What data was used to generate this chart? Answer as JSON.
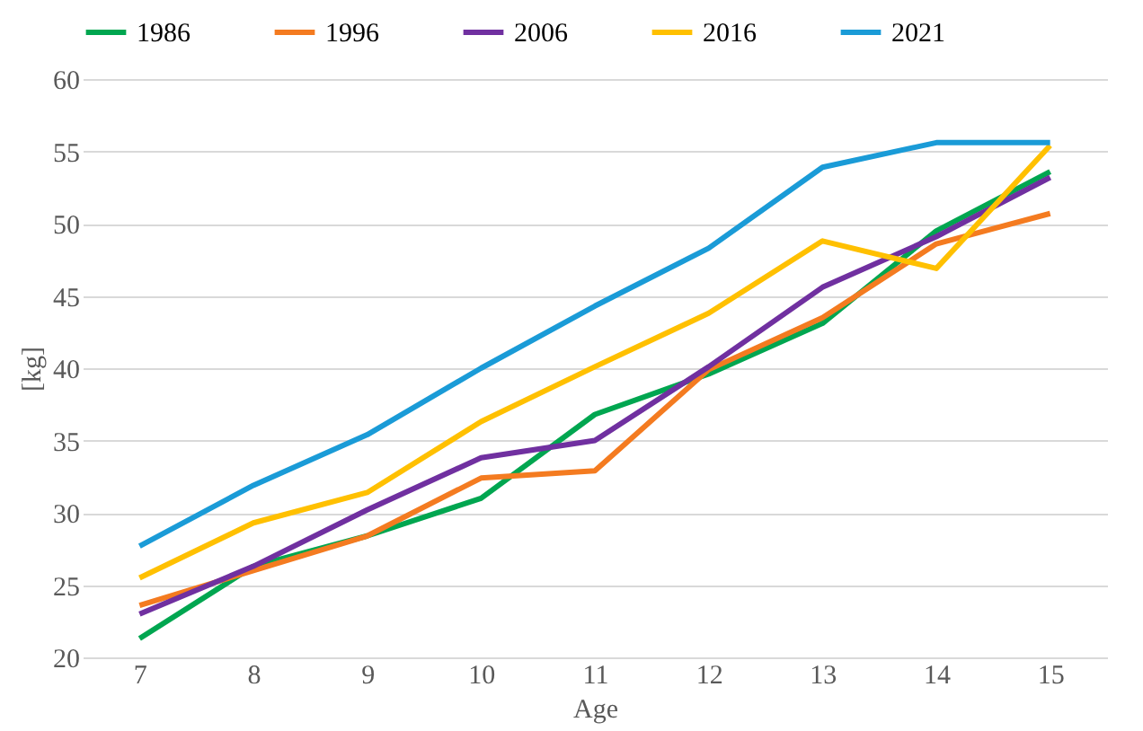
{
  "chart_data": {
    "type": "line",
    "xlabel": "Age",
    "ylabel": "[kg]",
    "categories": [
      "7",
      "8",
      "9",
      "10",
      "11",
      "12",
      "13",
      "14",
      "15"
    ],
    "series": [
      {
        "name": "1986",
        "color": "#00a650",
        "values": [
          21.3,
          26.3,
          28.4,
          31.0,
          36.8,
          39.6,
          43.1,
          49.5,
          53.6
        ]
      },
      {
        "name": "1996",
        "color": "#f47b20",
        "values": [
          23.6,
          26.0,
          28.4,
          32.4,
          32.9,
          39.9,
          43.5,
          48.6,
          50.7
        ]
      },
      {
        "name": "2006",
        "color": "#7030a0",
        "values": [
          23.0,
          26.3,
          30.2,
          33.8,
          35.0,
          40.1,
          45.6,
          49.1,
          53.2
        ]
      },
      {
        "name": "2016",
        "color": "#ffc000",
        "values": [
          25.5,
          29.3,
          31.4,
          36.3,
          40.1,
          43.8,
          48.8,
          46.9,
          55.4
        ]
      },
      {
        "name": "2021",
        "color": "#1a9bd7",
        "values": [
          27.7,
          31.9,
          35.4,
          40.0,
          44.3,
          48.3,
          53.9,
          55.6,
          55.6
        ]
      }
    ],
    "ylim": [
      20,
      60
    ],
    "yticks": [
      20,
      25,
      30,
      35,
      40,
      45,
      50,
      55,
      60
    ],
    "grid": "y",
    "legend": "top",
    "marker": "none",
    "line_style": "solid"
  }
}
